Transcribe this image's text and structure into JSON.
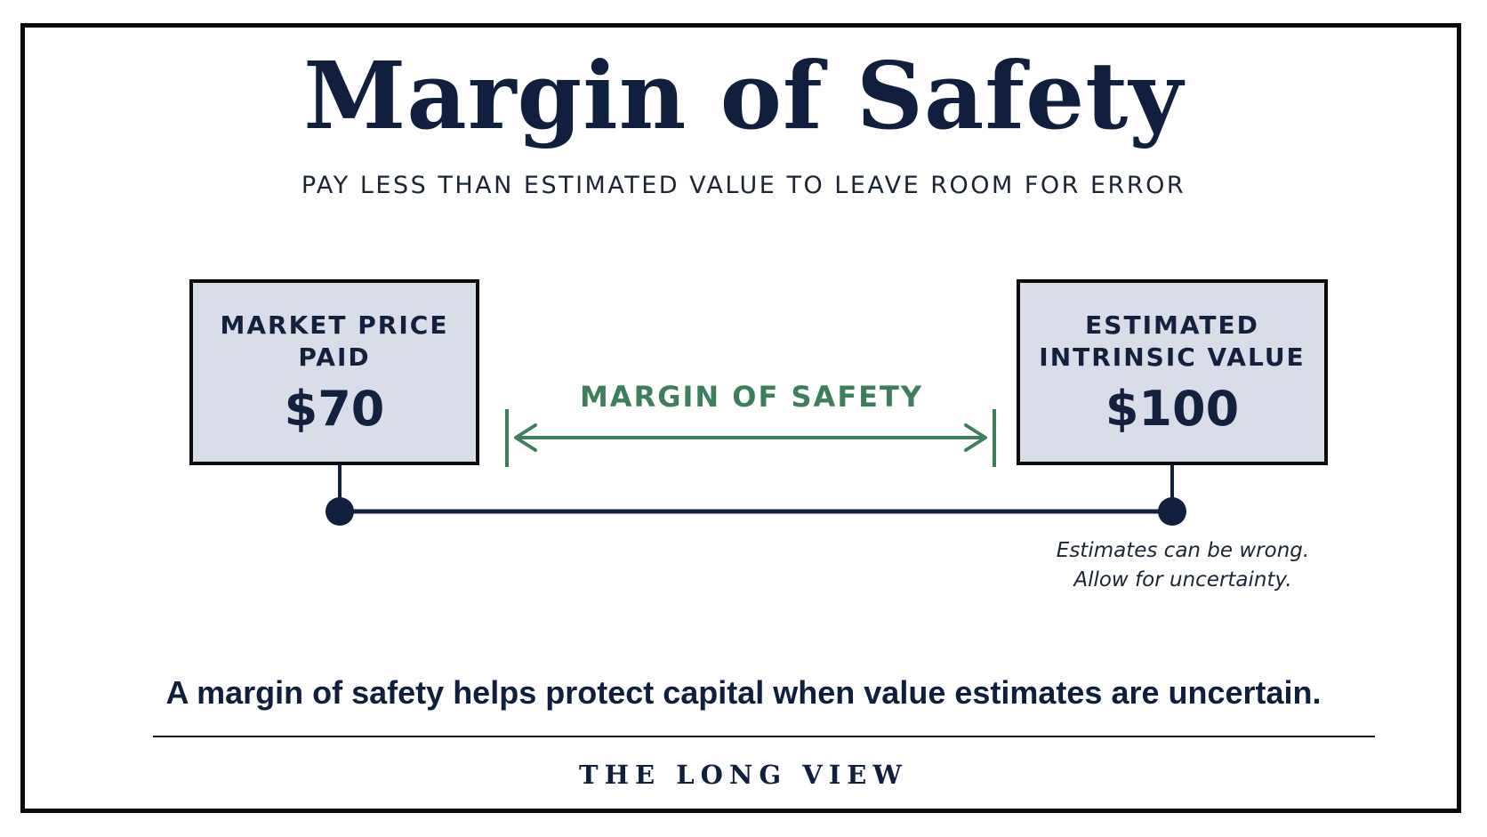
{
  "title": "Margin of Safety",
  "subtitle": "PAY LESS THAN ESTIMATED VALUE TO LEAVE ROOM FOR ERROR",
  "left_box": {
    "label": "MARKET PRICE\nPAID",
    "amount": "$70"
  },
  "right_box": {
    "label": "ESTIMATED\nINTRINSIC VALUE",
    "amount": "$100"
  },
  "gap_label": "MARGIN OF SAFETY",
  "note": "Estimates can be wrong.\nAllow for uncertainty.",
  "takeaway": "A margin of safety helps protect capital when value estimates are uncertain.",
  "brand": "THE LONG VIEW",
  "colors": {
    "navy": "#0f1f3d",
    "box_fill": "#d9dde8",
    "accent_green": "#3d7f5d"
  }
}
